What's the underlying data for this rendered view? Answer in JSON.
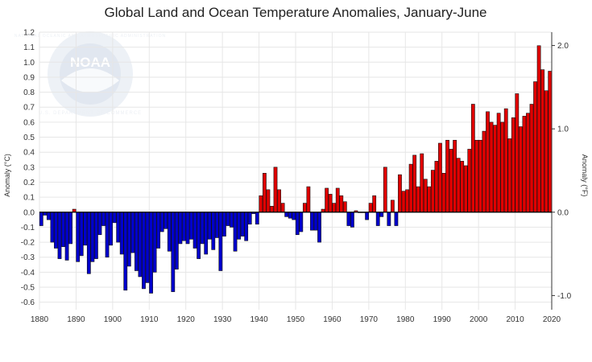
{
  "chart_data": {
    "type": "bar",
    "title": "Global Land and Ocean Temperature Anomalies, January-June",
    "ylabel_left": "Anomaly (°C)",
    "ylabel_right": "Anomaly (°F)",
    "xlim": [
      1880,
      2020
    ],
    "ylim": [
      -0.65,
      1.2
    ],
    "x_ticks": [
      "1880",
      "1890",
      "1900",
      "1910",
      "1920",
      "1930",
      "1940",
      "1950",
      "1960",
      "1970",
      "1980",
      "1990",
      "2000",
      "2010",
      "2020"
    ],
    "y_ticks_left": [
      "1.2",
      "1.1",
      "1.0",
      "0.9",
      "0.8",
      "0.7",
      "0.6",
      "0.5",
      "0.4",
      "0.3",
      "0.2",
      "0.1",
      "0.0",
      "-0.1",
      "-0.2",
      "-0.3",
      "-0.4",
      "-0.5",
      "-0.6"
    ],
    "y_ticks_right": [
      "2.0",
      "1.0",
      "0.0",
      "-1.0"
    ],
    "grid": true,
    "positive_color": "#e00000",
    "negative_color": "#0000cc",
    "logo_text": [
      "NOAA",
      "NATIONAL OCEANIC AND ATMOSPHERIC ADMINISTRATION",
      "U.S. DEPARTMENT OF COMMERCE"
    ],
    "x": [
      1880,
      1881,
      1882,
      1883,
      1884,
      1885,
      1886,
      1887,
      1888,
      1889,
      1890,
      1891,
      1892,
      1893,
      1894,
      1895,
      1896,
      1897,
      1898,
      1899,
      1900,
      1901,
      1902,
      1903,
      1904,
      1905,
      1906,
      1907,
      1908,
      1909,
      1910,
      1911,
      1912,
      1913,
      1914,
      1915,
      1916,
      1917,
      1918,
      1919,
      1920,
      1921,
      1922,
      1923,
      1924,
      1925,
      1926,
      1927,
      1928,
      1929,
      1930,
      1931,
      1932,
      1933,
      1934,
      1935,
      1936,
      1937,
      1938,
      1939,
      1940,
      1941,
      1942,
      1943,
      1944,
      1945,
      1946,
      1947,
      1948,
      1949,
      1950,
      1951,
      1952,
      1953,
      1954,
      1955,
      1956,
      1957,
      1958,
      1959,
      1960,
      1961,
      1962,
      1963,
      1964,
      1965,
      1966,
      1967,
      1968,
      1969,
      1970,
      1971,
      1972,
      1973,
      1974,
      1975,
      1976,
      1977,
      1978,
      1979,
      1980,
      1981,
      1982,
      1983,
      1984,
      1985,
      1986,
      1987,
      1988,
      1989,
      1990,
      1991,
      1992,
      1993,
      1994,
      1995,
      1996,
      1997,
      1998,
      1999,
      2000,
      2001,
      2002,
      2003,
      2004,
      2005,
      2006,
      2007,
      2008,
      2009,
      2010,
      2011,
      2012,
      2013,
      2014,
      2015,
      2016,
      2017,
      2018,
      2019
    ],
    "values": [
      -0.09,
      -0.02,
      -0.05,
      -0.2,
      -0.24,
      -0.31,
      -0.23,
      -0.32,
      -0.21,
      0.02,
      -0.33,
      -0.29,
      -0.22,
      -0.41,
      -0.33,
      -0.31,
      -0.15,
      -0.09,
      -0.3,
      -0.22,
      -0.07,
      -0.2,
      -0.28,
      -0.52,
      -0.36,
      -0.27,
      -0.39,
      -0.43,
      -0.51,
      -0.47,
      -0.54,
      -0.4,
      -0.24,
      -0.13,
      -0.11,
      -0.26,
      -0.53,
      -0.38,
      -0.21,
      -0.19,
      -0.21,
      -0.18,
      -0.24,
      -0.31,
      -0.21,
      -0.28,
      -0.18,
      -0.25,
      -0.17,
      -0.39,
      -0.16,
      -0.09,
      -0.1,
      -0.26,
      -0.18,
      -0.16,
      -0.19,
      -0.08,
      -0.01,
      -0.08,
      0.11,
      0.26,
      0.15,
      0.04,
      0.3,
      0.15,
      0.06,
      -0.03,
      -0.04,
      -0.05,
      -0.15,
      -0.13,
      0.06,
      0.17,
      -0.12,
      -0.12,
      -0.2,
      0.02,
      0.16,
      0.12,
      0.06,
      0.16,
      0.11,
      0.07,
      -0.09,
      -0.1,
      0.01,
      0.0,
      0.0,
      -0.05,
      0.06,
      0.11,
      -0.09,
      -0.03,
      0.3,
      -0.09,
      0.08,
      -0.09,
      0.25,
      0.14,
      0.15,
      0.32,
      0.38,
      0.17,
      0.39,
      0.22,
      0.17,
      0.28,
      0.34,
      0.46,
      0.26,
      0.48,
      0.42,
      0.48,
      0.36,
      0.34,
      0.31,
      0.42,
      0.72,
      0.48,
      0.48,
      0.54,
      0.67,
      0.6,
      0.58,
      0.66,
      0.6,
      0.69,
      0.49,
      0.63,
      0.79,
      0.57,
      0.64,
      0.66,
      0.72,
      0.87,
      1.11,
      0.95,
      0.81,
      0.94
    ]
  }
}
